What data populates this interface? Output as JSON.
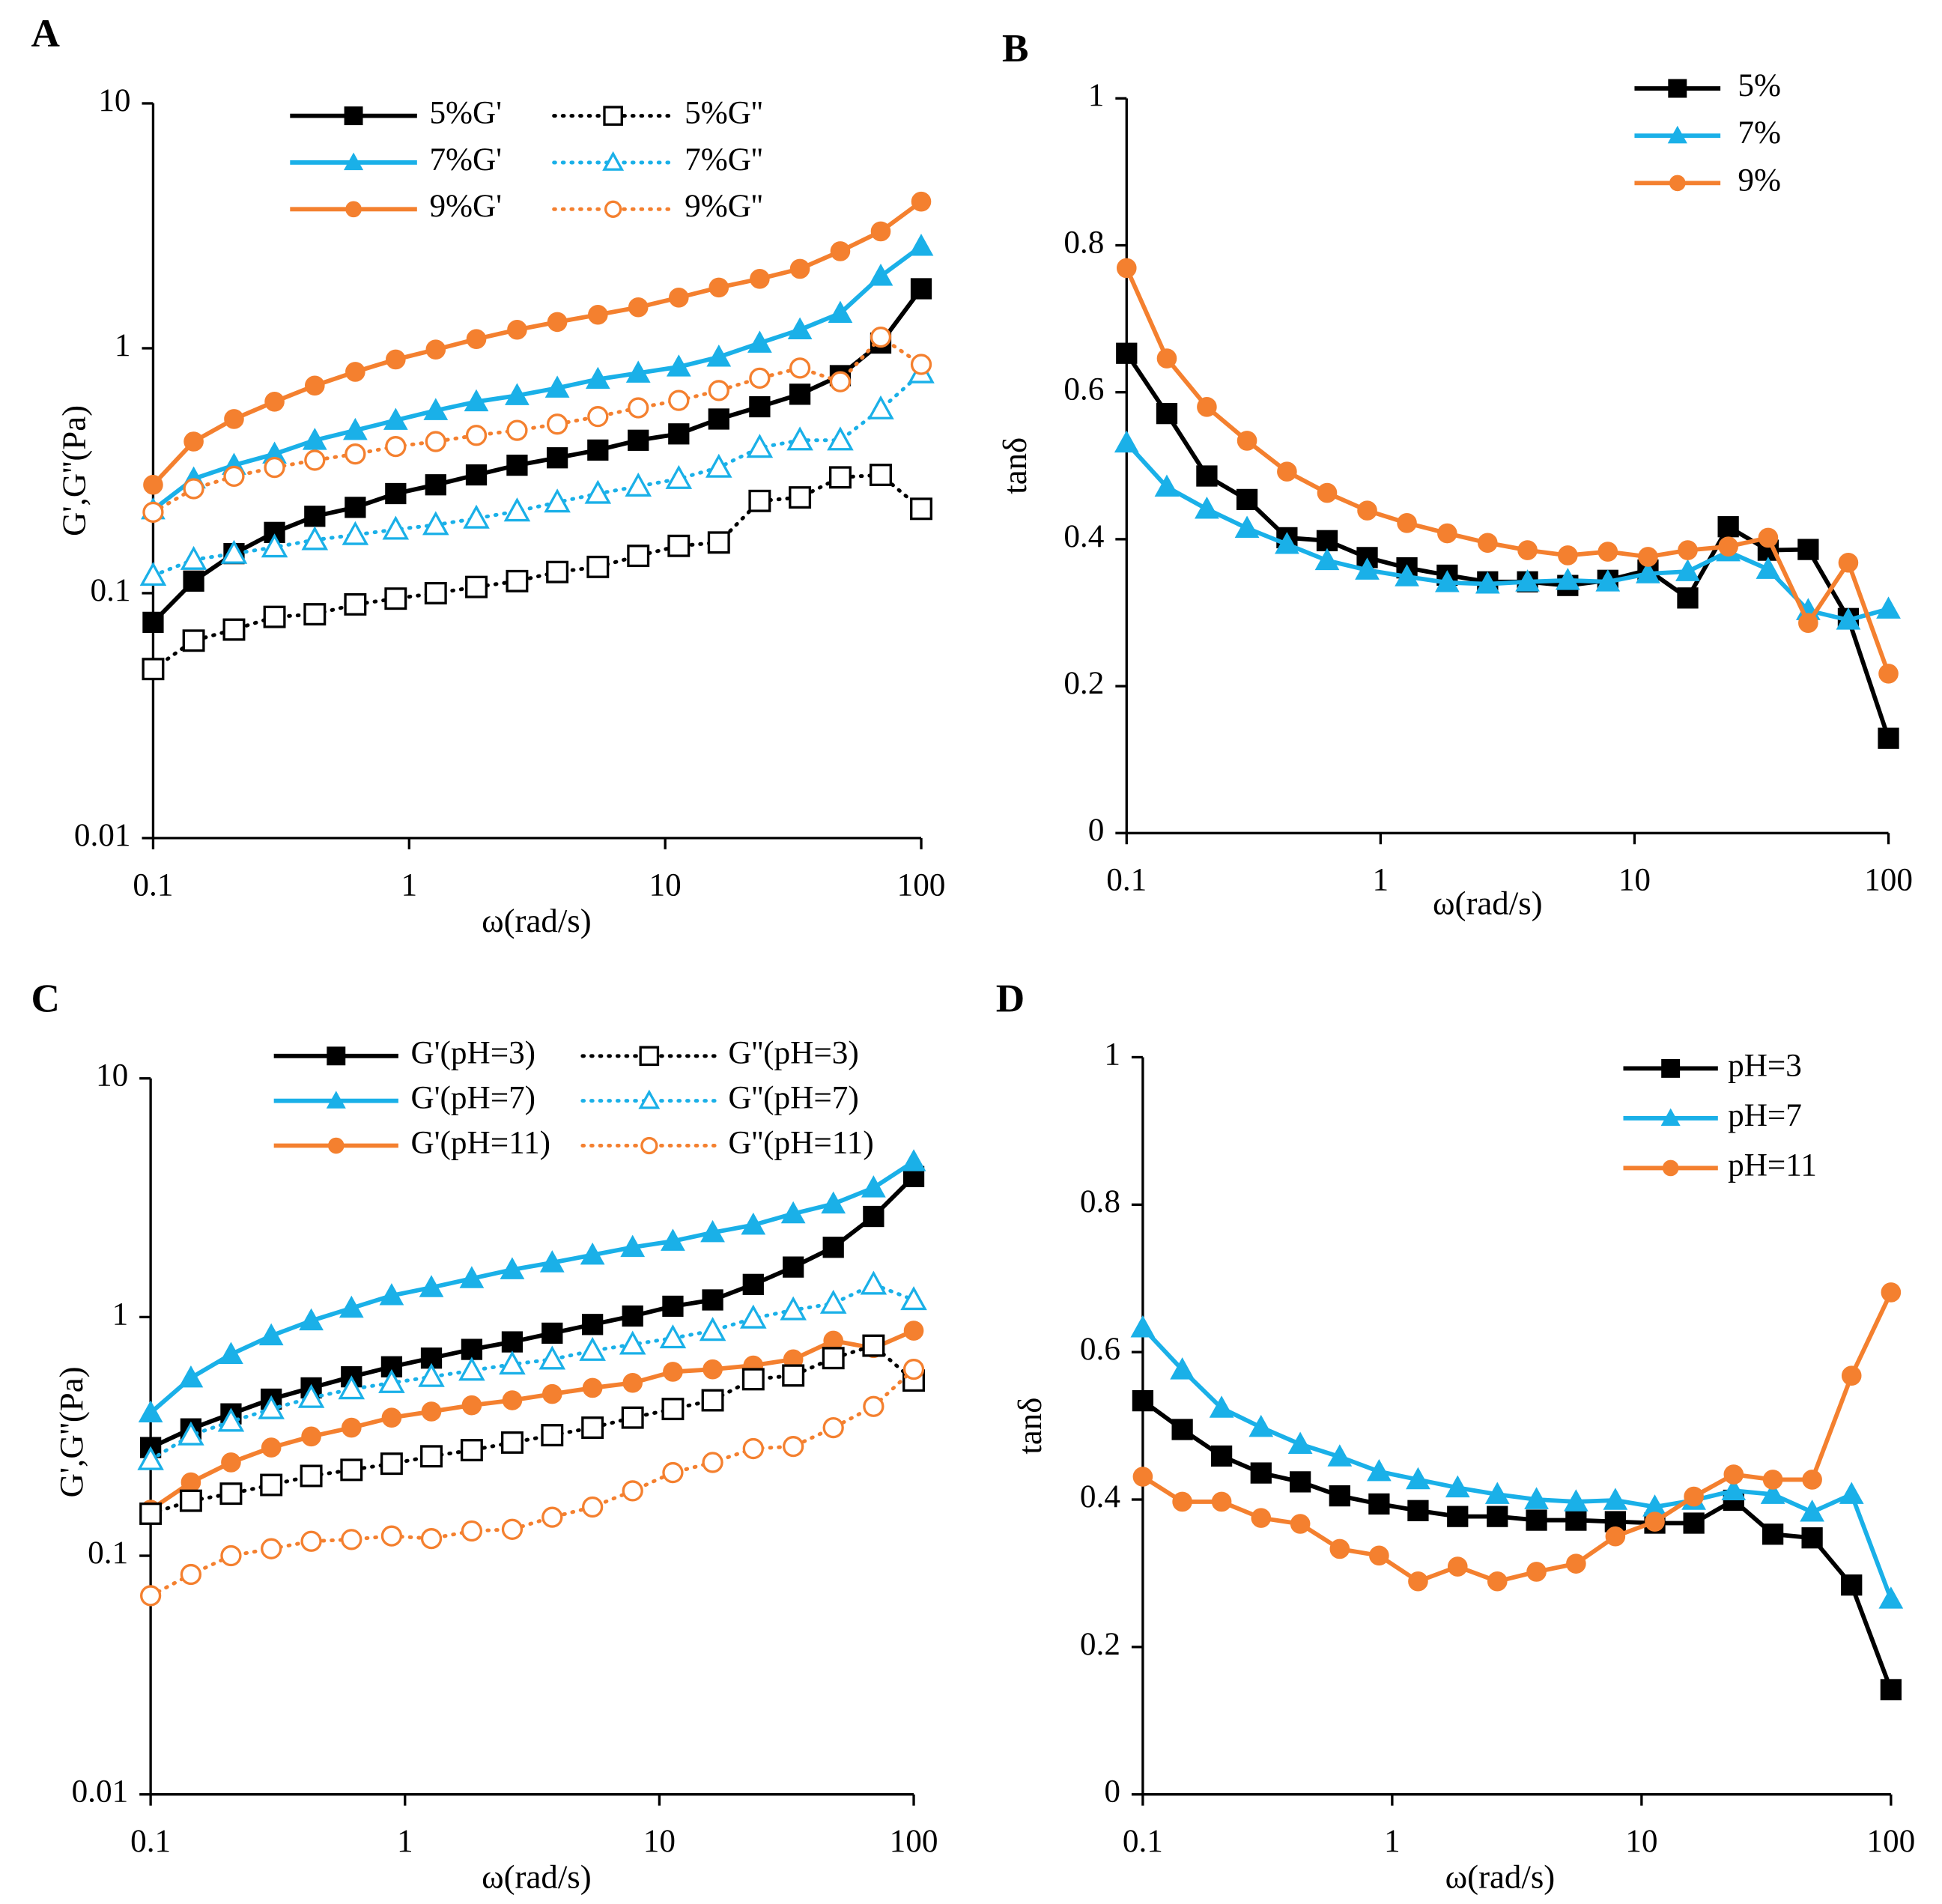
{
  "chart_data": [
    {
      "type": "line",
      "title": "A",
      "xlabel": "ω(rad/s)",
      "ylabel": "G',G''(Pa)",
      "log_x": true,
      "log_y": true,
      "x": [
        0.1,
        0.144,
        0.207,
        0.298,
        0.428,
        0.616,
        0.886,
        1.27,
        1.83,
        2.64,
        3.79,
        5.46,
        7.85,
        11.3,
        16.2,
        23.4,
        33.6,
        48.3,
        69.5,
        100
      ],
      "xlim": [
        0.1,
        100
      ],
      "xticks": [
        0.1,
        1,
        10,
        100
      ],
      "ylim": [
        0.01,
        10
      ],
      "yticks": [
        0.01,
        0.1,
        1,
        10
      ],
      "legend": "top",
      "legend_columns": 2,
      "series": [
        {
          "name": "5%G'",
          "color": "#000000",
          "marker": "square",
          "filled": true,
          "dash": "solid",
          "values": [
            0.076,
            0.112,
            0.145,
            0.177,
            0.206,
            0.224,
            0.255,
            0.277,
            0.304,
            0.333,
            0.357,
            0.384,
            0.421,
            0.447,
            0.514,
            0.577,
            0.649,
            0.773,
            1.05,
            1.75
          ]
        },
        {
          "name": "7%G'",
          "color": "#1ab0e8",
          "marker": "triangle",
          "filled": true,
          "dash": "solid",
          "values": [
            0.219,
            0.293,
            0.333,
            0.37,
            0.421,
            0.462,
            0.508,
            0.557,
            0.605,
            0.641,
            0.688,
            0.747,
            0.792,
            0.839,
            0.921,
            1.05,
            1.19,
            1.39,
            1.97,
            2.61
          ]
        },
        {
          "name": "9%G'",
          "color": "#f4802f",
          "marker": "circle",
          "filled": true,
          "dash": "solid",
          "values": [
            0.277,
            0.416,
            0.514,
            0.605,
            0.704,
            0.801,
            0.9,
            0.988,
            1.09,
            1.19,
            1.28,
            1.37,
            1.47,
            1.61,
            1.77,
            1.92,
            2.11,
            2.49,
            3.0,
            3.97
          ]
        },
        {
          "name": "5%G''",
          "color": "#000000",
          "marker": "square",
          "filled": false,
          "dash": "dotted",
          "values": [
            0.049,
            0.064,
            0.071,
            0.08,
            0.082,
            0.09,
            0.095,
            0.1,
            0.106,
            0.112,
            0.122,
            0.128,
            0.142,
            0.156,
            0.161,
            0.238,
            0.246,
            0.297,
            0.304,
            0.221
          ]
        },
        {
          "name": "7%G''",
          "color": "#1ab0e8",
          "marker": "triangle",
          "filled": false,
          "dash": "dotted",
          "values": [
            0.118,
            0.137,
            0.145,
            0.154,
            0.165,
            0.173,
            0.182,
            0.19,
            0.202,
            0.216,
            0.235,
            0.255,
            0.273,
            0.293,
            0.326,
            0.393,
            0.421,
            0.421,
            0.564,
            0.792
          ]
        },
        {
          "name": "9%G''",
          "color": "#f4802f",
          "marker": "circle",
          "filled": false,
          "dash": "dotted",
          "values": [
            0.214,
            0.267,
            0.3,
            0.326,
            0.349,
            0.37,
            0.397,
            0.416,
            0.441,
            0.462,
            0.49,
            0.526,
            0.571,
            0.612,
            0.672,
            0.755,
            0.83,
            0.73,
            1.11,
            0.859
          ]
        }
      ]
    },
    {
      "type": "line",
      "title": "B",
      "xlabel": "ω(rad/s)",
      "ylabel": "tanδ",
      "log_x": true,
      "log_y": false,
      "x": [
        0.1,
        0.144,
        0.207,
        0.298,
        0.428,
        0.616,
        0.886,
        1.27,
        1.83,
        2.64,
        3.79,
        5.46,
        7.85,
        11.3,
        16.2,
        23.4,
        33.6,
        48.3,
        69.5,
        100
      ],
      "xlim": [
        0.1,
        100
      ],
      "xticks": [
        0.1,
        1,
        10,
        100
      ],
      "ylim": [
        0,
        1
      ],
      "yticks": [
        0,
        0.2,
        0.4,
        0.6,
        0.8,
        1
      ],
      "legend": "top right",
      "legend_columns": 1,
      "series": [
        {
          "name": "5%",
          "color": "#000000",
          "marker": "square",
          "filled": true,
          "dash": "solid",
          "values": [
            0.653,
            0.571,
            0.486,
            0.454,
            0.402,
            0.398,
            0.375,
            0.361,
            0.351,
            0.342,
            0.342,
            0.337,
            0.344,
            0.358,
            0.32,
            0.417,
            0.385,
            0.386,
            0.292,
            0.129
          ]
        },
        {
          "name": "7%",
          "color": "#1ab0e8",
          "marker": "triangle",
          "filled": true,
          "dash": "solid",
          "values": [
            0.531,
            0.471,
            0.441,
            0.415,
            0.393,
            0.371,
            0.358,
            0.349,
            0.341,
            0.339,
            0.342,
            0.344,
            0.342,
            0.353,
            0.356,
            0.383,
            0.359,
            0.303,
            0.29,
            0.305
          ]
        },
        {
          "name": "9%",
          "color": "#f4802f",
          "marker": "circle",
          "filled": true,
          "dash": "solid",
          "values": [
            0.769,
            0.646,
            0.58,
            0.534,
            0.492,
            0.463,
            0.439,
            0.422,
            0.408,
            0.395,
            0.385,
            0.378,
            0.383,
            0.376,
            0.385,
            0.39,
            0.402,
            0.286,
            0.368,
            0.217
          ]
        }
      ]
    },
    {
      "type": "line",
      "title": "C",
      "xlabel": "ω(rad/s)",
      "ylabel": "G',G''(Pa)",
      "log_x": true,
      "log_y": true,
      "x": [
        0.1,
        0.144,
        0.207,
        0.298,
        0.428,
        0.616,
        0.886,
        1.27,
        1.83,
        2.64,
        3.79,
        5.46,
        7.85,
        11.3,
        16.2,
        23.4,
        33.6,
        48.3,
        69.5,
        100
      ],
      "xlim": [
        0.1,
        100
      ],
      "xticks": [
        0.1,
        1,
        10,
        100
      ],
      "ylim": [
        0.01,
        10
      ],
      "yticks": [
        0.01,
        0.1,
        1,
        10
      ],
      "legend": "top",
      "legend_columns": 2,
      "series": [
        {
          "name": "G'(pH=3)",
          "color": "#000000",
          "marker": "square",
          "filled": true,
          "dash": "solid",
          "values": [
            0.284,
            0.34,
            0.393,
            0.453,
            0.505,
            0.562,
            0.619,
            0.673,
            0.732,
            0.787,
            0.856,
            0.931,
            1.01,
            1.11,
            1.18,
            1.37,
            1.62,
            1.96,
            2.64,
            3.88
          ]
        },
        {
          "name": "G'(pH=7)",
          "color": "#1ab0e8",
          "marker": "triangle",
          "filled": true,
          "dash": "solid",
          "values": [
            0.397,
            0.556,
            0.698,
            0.835,
            0.965,
            1.09,
            1.23,
            1.33,
            1.45,
            1.58,
            1.69,
            1.82,
            1.96,
            2.08,
            2.26,
            2.43,
            2.71,
            2.98,
            3.48,
            4.48
          ]
        },
        {
          "name": "G'(pH=11)",
          "color": "#f4802f",
          "marker": "circle",
          "filled": true,
          "dash": "solid",
          "values": [
            0.156,
            0.203,
            0.246,
            0.284,
            0.316,
            0.344,
            0.379,
            0.402,
            0.427,
            0.448,
            0.476,
            0.505,
            0.53,
            0.59,
            0.604,
            0.627,
            0.665,
            0.796,
            0.741,
            0.877
          ]
        },
        {
          "name": "G''(pH=3)",
          "color": "#000000",
          "marker": "square",
          "filled": false,
          "dash": "dotted",
          "values": [
            0.15,
            0.17,
            0.182,
            0.198,
            0.216,
            0.229,
            0.243,
            0.261,
            0.277,
            0.298,
            0.32,
            0.344,
            0.379,
            0.412,
            0.448,
            0.549,
            0.569,
            0.673,
            0.759,
            0.542
          ]
        },
        {
          "name": "G''(pH=7)",
          "color": "#1ab0e8",
          "marker": "triangle",
          "filled": false,
          "dash": "dotted",
          "values": [
            0.252,
            0.32,
            0.365,
            0.412,
            0.459,
            0.499,
            0.53,
            0.562,
            0.597,
            0.634,
            0.665,
            0.723,
            0.768,
            0.816,
            0.877,
            0.988,
            1.07,
            1.14,
            1.37,
            1.18
          ]
        },
        {
          "name": "G''(pH=11)",
          "color": "#f4802f",
          "marker": "circle",
          "filled": false,
          "dash": "dotted",
          "values": [
            0.068,
            0.0835,
            0.1,
            0.107,
            0.115,
            0.117,
            0.121,
            0.118,
            0.127,
            0.129,
            0.145,
            0.16,
            0.187,
            0.223,
            0.246,
            0.281,
            0.287,
            0.344,
            0.422,
            0.604
          ]
        }
      ]
    },
    {
      "type": "line",
      "title": "D",
      "xlabel": "ω(rad/s)",
      "ylabel": "tanδ",
      "log_x": true,
      "log_y": false,
      "x": [
        0.1,
        0.144,
        0.207,
        0.298,
        0.428,
        0.616,
        0.886,
        1.27,
        1.83,
        2.64,
        3.79,
        5.46,
        7.85,
        11.3,
        16.2,
        23.4,
        33.6,
        48.3,
        69.5,
        100
      ],
      "xlim": [
        0.1,
        100
      ],
      "xticks": [
        0.1,
        1,
        10,
        100
      ],
      "ylim": [
        0,
        1
      ],
      "yticks": [
        0,
        0.2,
        0.4,
        0.6,
        0.8,
        1
      ],
      "legend": "top right",
      "legend_columns": 1,
      "series": [
        {
          "name": "pH=3",
          "color": "#000000",
          "marker": "square",
          "filled": true,
          "dash": "solid",
          "values": [
            0.534,
            0.495,
            0.459,
            0.436,
            0.424,
            0.405,
            0.394,
            0.385,
            0.377,
            0.377,
            0.372,
            0.372,
            0.37,
            0.368,
            0.368,
            0.399,
            0.353,
            0.348,
            0.284,
            0.142
          ]
        },
        {
          "name": "pH=7",
          "color": "#1ab0e8",
          "marker": "triangle",
          "filled": true,
          "dash": "solid",
          "values": [
            0.633,
            0.576,
            0.524,
            0.498,
            0.475,
            0.458,
            0.438,
            0.427,
            0.416,
            0.407,
            0.4,
            0.397,
            0.399,
            0.39,
            0.399,
            0.412,
            0.407,
            0.383,
            0.407,
            0.265
          ]
        },
        {
          "name": "pH=11",
          "color": "#f4802f",
          "marker": "circle",
          "filled": true,
          "dash": "solid",
          "values": [
            0.431,
            0.397,
            0.397,
            0.375,
            0.367,
            0.333,
            0.324,
            0.289,
            0.309,
            0.289,
            0.302,
            0.313,
            0.35,
            0.37,
            0.404,
            0.434,
            0.427,
            0.427,
            0.568,
            0.681
          ]
        }
      ]
    }
  ]
}
